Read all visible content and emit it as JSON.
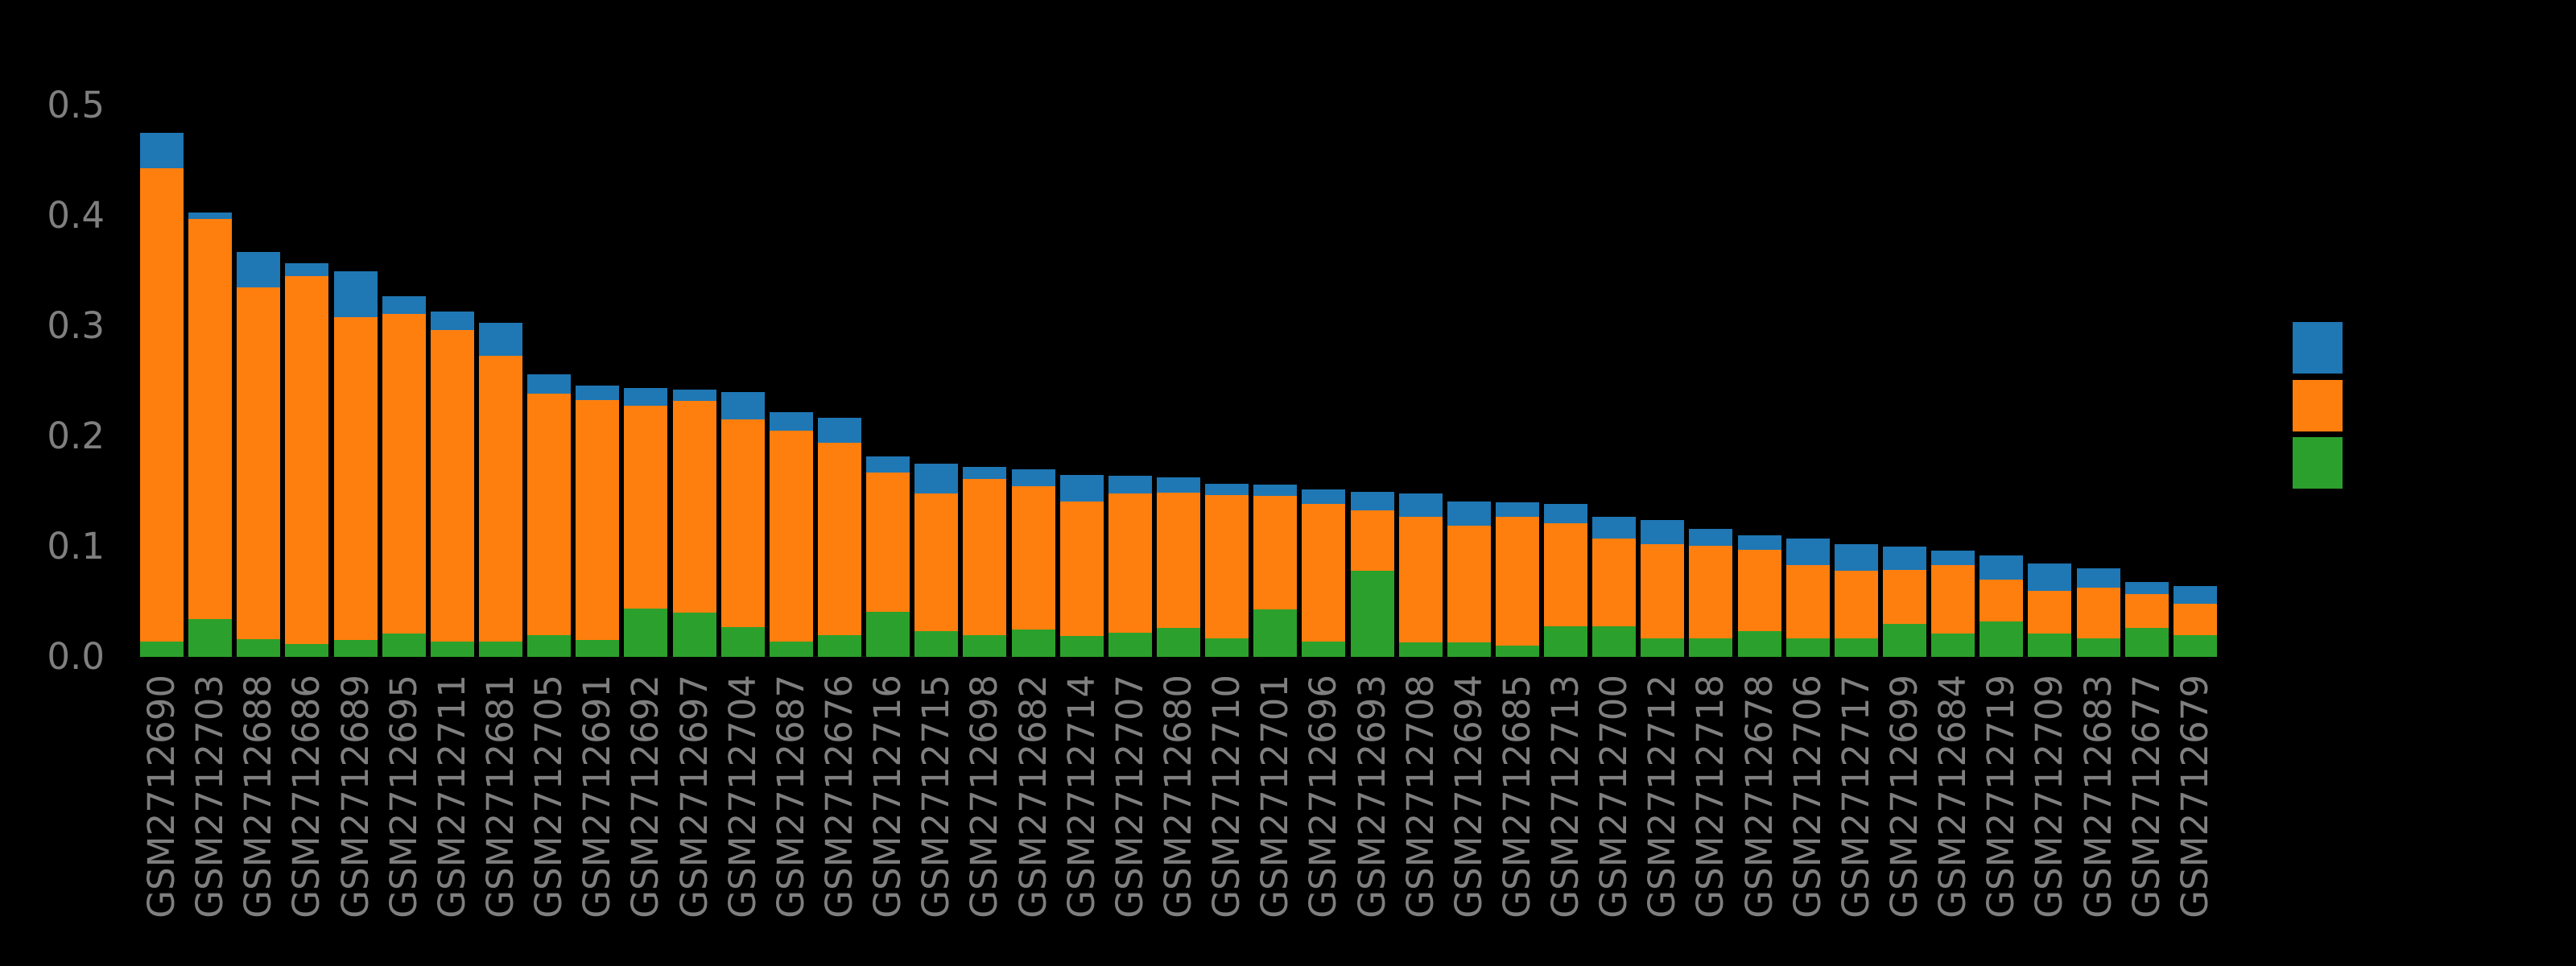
{
  "chart_data": {
    "type": "bar",
    "stacked": true,
    "orientation": "vertical",
    "title": "",
    "xlabel": "",
    "ylabel": "",
    "background_color": "#000000",
    "tick_label_color": "#7f7f7f",
    "grid": false,
    "ylim": [
      0,
      0.5
    ],
    "y_ticks": [
      0.0,
      0.1,
      0.2,
      0.3,
      0.4,
      0.5
    ],
    "y_tick_labels": [
      "0.0",
      "0.1",
      "0.2",
      "0.3",
      "0.4",
      "0.5"
    ],
    "legend": {
      "position": "center-right",
      "labels_visible": false,
      "order_top_to_bottom": [
        "blue",
        "orange",
        "green"
      ]
    },
    "categories": [
      "GSM2712690",
      "GSM2712703",
      "GSM2712688",
      "GSM2712686",
      "GSM2712689",
      "GSM2712695",
      "GSM2712711",
      "GSM2712681",
      "GSM2712705",
      "GSM2712691",
      "GSM2712692",
      "GSM2712697",
      "GSM2712704",
      "GSM2712687",
      "GSM2712676",
      "GSM2712716",
      "GSM2712715",
      "GSM2712698",
      "GSM2712682",
      "GSM2712714",
      "GSM2712707",
      "GSM2712680",
      "GSM2712710",
      "GSM2712701",
      "GSM2712696",
      "GSM2712693",
      "GSM2712708",
      "GSM2712694",
      "GSM2712685",
      "GSM2712713",
      "GSM2712700",
      "GSM2712712",
      "GSM2712718",
      "GSM2712678",
      "GSM2712706",
      "GSM2712717",
      "GSM2712699",
      "GSM2712684",
      "GSM2712719",
      "GSM2712709",
      "GSM2712683",
      "GSM2712677",
      "GSM2712679"
    ],
    "series": [
      {
        "name": "green",
        "color": "#2ca02c",
        "values": [
          0.014,
          0.034,
          0.016,
          0.012,
          0.015,
          0.021,
          0.014,
          0.014,
          0.02,
          0.015,
          0.044,
          0.04,
          0.027,
          0.014,
          0.02,
          0.041,
          0.023,
          0.02,
          0.025,
          0.019,
          0.022,
          0.026,
          0.017,
          0.043,
          0.014,
          0.078,
          0.013,
          0.013,
          0.01,
          0.028,
          0.028,
          0.017,
          0.017,
          0.023,
          0.017,
          0.017,
          0.03,
          0.021,
          0.032,
          0.021,
          0.017,
          0.026,
          0.02
        ]
      },
      {
        "name": "orange",
        "color": "#ff7f0e",
        "values": [
          0.429,
          0.363,
          0.319,
          0.333,
          0.293,
          0.29,
          0.282,
          0.259,
          0.219,
          0.218,
          0.184,
          0.192,
          0.188,
          0.191,
          0.174,
          0.126,
          0.125,
          0.141,
          0.13,
          0.122,
          0.126,
          0.123,
          0.13,
          0.103,
          0.125,
          0.055,
          0.114,
          0.106,
          0.117,
          0.093,
          0.079,
          0.085,
          0.084,
          0.074,
          0.066,
          0.061,
          0.049,
          0.062,
          0.038,
          0.039,
          0.046,
          0.031,
          0.028
        ]
      },
      {
        "name": "blue",
        "color": "#1f77b4",
        "values": [
          0.032,
          0.006,
          0.032,
          0.012,
          0.042,
          0.016,
          0.017,
          0.03,
          0.017,
          0.013,
          0.016,
          0.01,
          0.025,
          0.017,
          0.023,
          0.015,
          0.027,
          0.011,
          0.015,
          0.024,
          0.016,
          0.014,
          0.01,
          0.01,
          0.013,
          0.017,
          0.021,
          0.022,
          0.013,
          0.018,
          0.02,
          0.022,
          0.015,
          0.013,
          0.024,
          0.024,
          0.021,
          0.013,
          0.022,
          0.025,
          0.017,
          0.011,
          0.016
        ]
      }
    ],
    "totals": [
      0.475,
      0.403,
      0.367,
      0.357,
      0.35,
      0.327,
      0.313,
      0.303,
      0.256,
      0.246,
      0.244,
      0.242,
      0.24,
      0.222,
      0.217,
      0.182,
      0.175,
      0.172,
      0.17,
      0.165,
      0.164,
      0.163,
      0.157,
      0.156,
      0.152,
      0.15,
      0.148,
      0.141,
      0.14,
      0.139,
      0.127,
      0.124,
      0.116,
      0.11,
      0.107,
      0.102,
      0.1,
      0.096,
      0.092,
      0.085,
      0.08,
      0.068,
      0.064
    ]
  }
}
